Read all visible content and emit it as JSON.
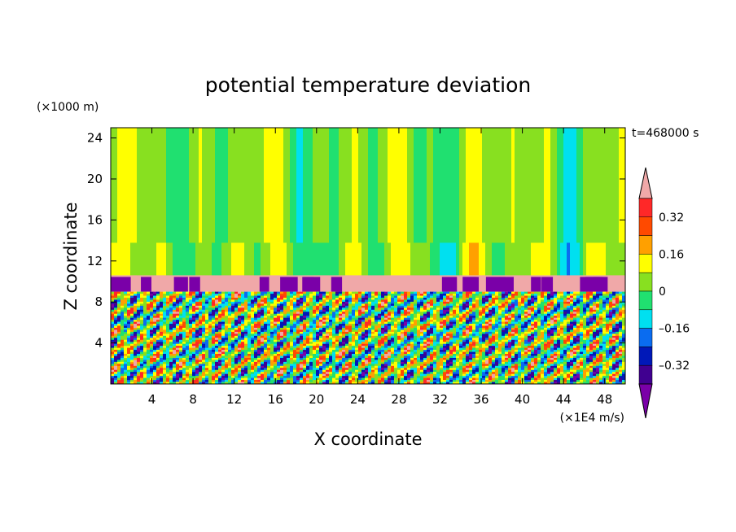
{
  "chart_data": {
    "type": "heatmap",
    "title": "potential temperature deviation",
    "xlabel": "X coordinate",
    "ylabel": "Z coordinate",
    "x_unit": "(×1E4 m/s)",
    "y_unit": "(×1000 m)",
    "time_label": "t=468000 s",
    "xlim": [
      0,
      50
    ],
    "ylim": [
      0,
      25
    ],
    "x_ticks": [
      4,
      8,
      12,
      16,
      20,
      24,
      28,
      32,
      36,
      40,
      44,
      48
    ],
    "y_ticks": [
      4,
      8,
      12,
      16,
      20,
      24
    ],
    "layers": {
      "upper_region_z": [
        10.6,
        25
      ],
      "band_z": [
        9.0,
        10.6
      ],
      "mixed_layer_z": [
        0,
        9.0
      ]
    },
    "colorbar": {
      "levels": [
        -0.4,
        -0.32,
        -0.24,
        -0.16,
        -0.08,
        0,
        0.08,
        0.16,
        0.24,
        0.32,
        0.4
      ],
      "labels": [
        "0.32",
        "0.16",
        "0",
        "–0.16",
        "–0.32"
      ],
      "label_values": [
        0.32,
        0.16,
        0,
        -0.16,
        -0.32
      ],
      "colors": [
        "#7a00a8",
        "#400090",
        "#0018b8",
        "#0a6cf0",
        "#00e0f0",
        "#20e070",
        "#88e020",
        "#ffff00",
        "#ffa000",
        "#ff4a00",
        "#ff2828",
        "#f0a8a8"
      ]
    }
  }
}
